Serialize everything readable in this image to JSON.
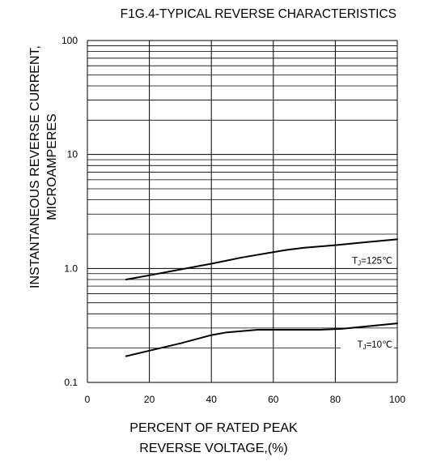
{
  "chart_data": {
    "type": "line",
    "title": "F1G.4-TYPICAL REVERSE CHARACTERISTICS",
    "ylabel_lines": [
      "INSTANTANEOUS REVERSE CURRENT,",
      "MICROAMPERES"
    ],
    "xlabel_lines": [
      "PERCENT OF RATED PEAK",
      "REVERSE VOLTAGE,(%)"
    ],
    "xlim": [
      0,
      100
    ],
    "ylim": [
      0.1,
      100
    ],
    "yscale": "log",
    "grid": true,
    "x_ticks": [
      0,
      20,
      40,
      60,
      80,
      100
    ],
    "x_tick_labels": [
      "0",
      "20",
      "40",
      "60",
      "80",
      "100"
    ],
    "y_ticks": [
      0.1,
      1,
      10,
      100
    ],
    "y_tick_labels": [
      "0.1",
      "1.0",
      "10",
      "100"
    ],
    "series": [
      {
        "name": "TJ=125℃",
        "label_prefix": "T",
        "label_sub": "J",
        "label_suffix": "=125℃",
        "x": [
          12.5,
          20,
          30,
          40,
          50,
          64,
          70,
          80,
          90,
          100
        ],
        "y": [
          0.8,
          0.87,
          0.98,
          1.1,
          1.25,
          1.45,
          1.52,
          1.6,
          1.7,
          1.8
        ]
      },
      {
        "name": "TJ=10℃",
        "label_prefix": "T",
        "label_sub": "J",
        "label_suffix": "=10℃",
        "x": [
          12.5,
          20,
          30,
          40,
          45,
          55,
          65,
          75,
          82,
          90,
          100
        ],
        "y": [
          0.17,
          0.19,
          0.22,
          0.26,
          0.275,
          0.29,
          0.29,
          0.29,
          0.295,
          0.31,
          0.33
        ]
      }
    ]
  }
}
